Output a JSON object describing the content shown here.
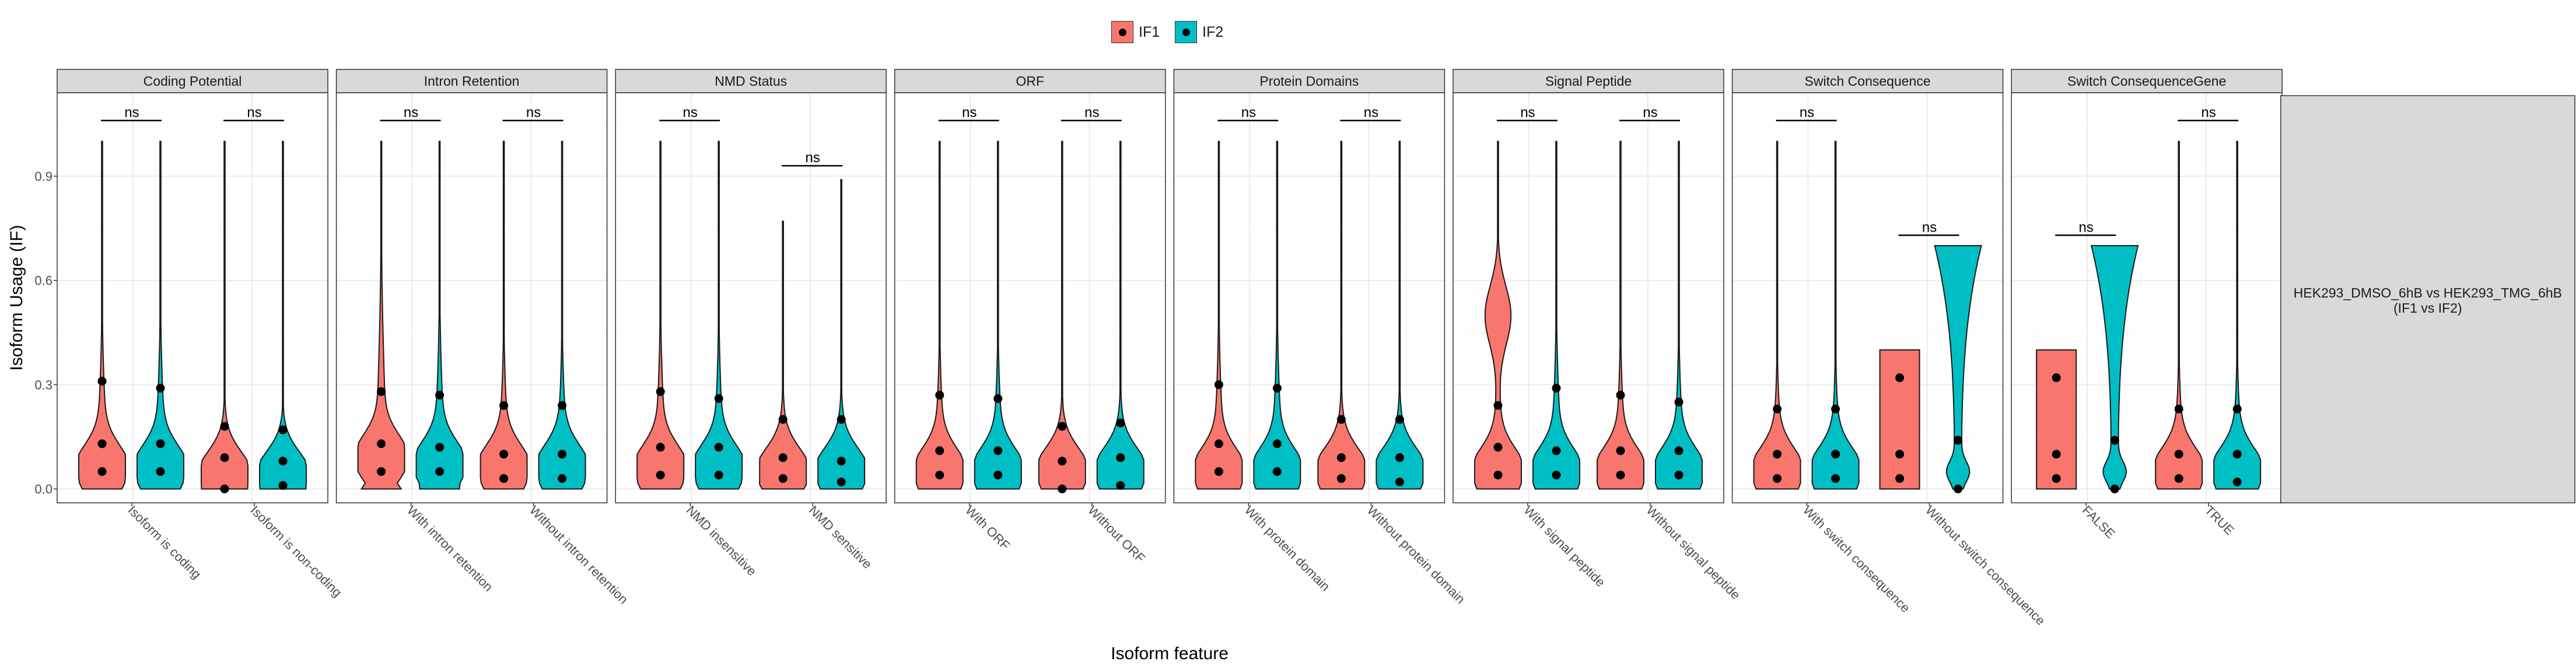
{
  "legend": {
    "items": [
      {
        "label": "IF1",
        "color": "#F8766D"
      },
      {
        "label": "IF2",
        "color": "#00BFC4"
      }
    ]
  },
  "chart_data": {
    "type": "violin",
    "title": "",
    "xlabel": "Isoform feature",
    "ylabel": "Isoform Usage (IF)",
    "ylim": [
      -0.04,
      1.14
    ],
    "yticks": [
      0.0,
      0.3,
      0.6,
      0.9
    ],
    "ytick_labels": [
      "0.0",
      "0.3",
      "0.6",
      "0.9"
    ],
    "grid": true,
    "legend_position": "top",
    "series_names": [
      "IF1",
      "IF2"
    ],
    "series_colors": [
      "#F8766D",
      "#00BFC4"
    ],
    "right_strip_label": "HEK293_DMSO_6hB vs HEK293_TMG_6hB\n(IF1 vs IF2)",
    "panels": [
      {
        "title": "Coding Potential",
        "groups": [
          {
            "label": "Isoform is coding",
            "sig": "ns",
            "sig_y": 1.06,
            "IF1": {
              "max": 1.0,
              "bulge": 0.06,
              "tail": 0.4,
              "q1": 0.05,
              "median": 0.13,
              "q3": 0.31
            },
            "IF2": {
              "max": 1.0,
              "bulge": 0.06,
              "tail": 0.4,
              "q1": 0.05,
              "median": 0.13,
              "q3": 0.29
            }
          },
          {
            "label": "Isoform is non-coding",
            "sig": "ns",
            "sig_y": 1.06,
            "IF1": {
              "max": 1.0,
              "bulge": 0.04,
              "tail": 0.2,
              "q1": 0.0,
              "median": 0.09,
              "q3": 0.18
            },
            "IF2": {
              "max": 1.0,
              "bulge": 0.04,
              "tail": 0.17,
              "q1": 0.01,
              "median": 0.08,
              "q3": 0.17
            }
          }
        ]
      },
      {
        "title": "Intron Retention",
        "groups": [
          {
            "label": "With intron retention",
            "sig": "ns",
            "sig_y": 1.06,
            "IF1": {
              "max": 1.0,
              "bulge": 0.09,
              "tail": 0.55,
              "q1": 0.05,
              "median": 0.13,
              "q3": 0.28
            },
            "IF2": {
              "max": 1.0,
              "bulge": 0.07,
              "tail": 0.42,
              "q1": 0.05,
              "median": 0.12,
              "q3": 0.27
            }
          },
          {
            "label": "Without intron retention",
            "sig": "ns",
            "sig_y": 1.06,
            "IF1": {
              "max": 1.0,
              "bulge": 0.06,
              "tail": 0.35,
              "q1": 0.03,
              "median": 0.1,
              "q3": 0.24
            },
            "IF2": {
              "max": 1.0,
              "bulge": 0.06,
              "tail": 0.35,
              "q1": 0.03,
              "median": 0.1,
              "q3": 0.24
            }
          }
        ]
      },
      {
        "title": "NMD Status",
        "groups": [
          {
            "label": "NMD insensitive",
            "sig": "ns",
            "sig_y": 1.06,
            "IF1": {
              "max": 1.0,
              "bulge": 0.06,
              "tail": 0.4,
              "q1": 0.04,
              "median": 0.12,
              "q3": 0.28
            },
            "IF2": {
              "max": 1.0,
              "bulge": 0.06,
              "tail": 0.38,
              "q1": 0.04,
              "median": 0.12,
              "q3": 0.26
            }
          },
          {
            "label": "NMD sensitive",
            "sig": "ns",
            "sig_y": 0.93,
            "IF1": {
              "max": 0.77,
              "bulge": 0.05,
              "tail": 0.22,
              "q1": 0.03,
              "median": 0.09,
              "q3": 0.2
            },
            "IF2": {
              "max": 0.89,
              "bulge": 0.05,
              "tail": 0.22,
              "q1": 0.02,
              "median": 0.08,
              "q3": 0.2
            }
          }
        ]
      },
      {
        "title": "ORF",
        "groups": [
          {
            "label": "With ORF",
            "sig": "ns",
            "sig_y": 1.06,
            "IF1": {
              "max": 1.0,
              "bulge": 0.05,
              "tail": 0.35,
              "q1": 0.04,
              "median": 0.11,
              "q3": 0.27
            },
            "IF2": {
              "max": 1.0,
              "bulge": 0.05,
              "tail": 0.35,
              "q1": 0.04,
              "median": 0.11,
              "q3": 0.26
            }
          },
          {
            "label": "Without ORF",
            "sig": "ns",
            "sig_y": 1.06,
            "IF1": {
              "max": 1.0,
              "bulge": 0.05,
              "tail": 0.2,
              "q1": 0.0,
              "median": 0.08,
              "q3": 0.18
            },
            "IF2": {
              "max": 1.0,
              "bulge": 0.05,
              "tail": 0.22,
              "q1": 0.01,
              "median": 0.09,
              "q3": 0.19
            }
          }
        ]
      },
      {
        "title": "Protein Domains",
        "groups": [
          {
            "label": "With protein domain",
            "sig": "ns",
            "sig_y": 1.06,
            "IF1": {
              "max": 1.0,
              "bulge": 0.05,
              "tail": 0.4,
              "q1": 0.05,
              "median": 0.13,
              "q3": 0.3
            },
            "IF2": {
              "max": 1.0,
              "bulge": 0.05,
              "tail": 0.4,
              "q1": 0.05,
              "median": 0.13,
              "q3": 0.29
            }
          },
          {
            "label": "Without protein domain",
            "sig": "ns",
            "sig_y": 1.06,
            "IF1": {
              "max": 1.0,
              "bulge": 0.05,
              "tail": 0.22,
              "q1": 0.03,
              "median": 0.09,
              "q3": 0.2
            },
            "IF2": {
              "max": 1.0,
              "bulge": 0.05,
              "tail": 0.22,
              "q1": 0.02,
              "median": 0.09,
              "q3": 0.2
            }
          }
        ]
      },
      {
        "title": "Signal Peptide",
        "groups": [
          {
            "label": "With signal peptide",
            "sig": "ns",
            "sig_y": 1.06,
            "IF1": {
              "max": 1.0,
              "bulge": 0.05,
              "tail": 0.35,
              "q1": 0.04,
              "median": 0.12,
              "q3": 0.24,
              "hump": 0.5
            },
            "IF2": {
              "max": 1.0,
              "bulge": 0.05,
              "tail": 0.4,
              "q1": 0.04,
              "median": 0.11,
              "q3": 0.29
            }
          },
          {
            "label": "Without signal peptide",
            "sig": "ns",
            "sig_y": 1.06,
            "IF1": {
              "max": 1.0,
              "bulge": 0.05,
              "tail": 0.35,
              "q1": 0.04,
              "median": 0.11,
              "q3": 0.27
            },
            "IF2": {
              "max": 1.0,
              "bulge": 0.05,
              "tail": 0.35,
              "q1": 0.04,
              "median": 0.11,
              "q3": 0.25
            }
          }
        ]
      },
      {
        "title": "Switch Consequence",
        "groups": [
          {
            "label": "With switch consequence",
            "sig": "ns",
            "sig_y": 1.06,
            "IF1": {
              "max": 1.0,
              "bulge": 0.05,
              "tail": 0.3,
              "q1": 0.03,
              "median": 0.1,
              "q3": 0.23
            },
            "IF2": {
              "max": 1.0,
              "bulge": 0.05,
              "tail": 0.3,
              "q1": 0.03,
              "median": 0.1,
              "q3": 0.23
            }
          },
          {
            "label": "Without switch consequence",
            "sig": "ns",
            "sig_y": 0.73,
            "IF1": {
              "max": 0.4,
              "min": 0.0,
              "shape": "rect",
              "q1": 0.03,
              "median": 0.1,
              "q3": 0.32
            },
            "IF2": {
              "max": 0.7,
              "min": 0.0,
              "shape": "funnel",
              "q1": 0.0,
              "median": 0.14,
              "q3": 0.14
            }
          }
        ]
      },
      {
        "title": "Switch ConsequenceGene",
        "groups": [
          {
            "label": "FALSE",
            "sig": "ns",
            "sig_y": 0.73,
            "IF1": {
              "max": 0.4,
              "min": 0.0,
              "shape": "rect",
              "q1": 0.03,
              "median": 0.1,
              "q3": 0.32
            },
            "IF2": {
              "max": 0.7,
              "min": 0.0,
              "shape": "funnel",
              "q1": 0.0,
              "median": 0.14,
              "q3": 0.14
            }
          },
          {
            "label": "TRUE",
            "sig": "ns",
            "sig_y": 1.06,
            "IF1": {
              "max": 1.0,
              "bulge": 0.05,
              "tail": 0.3,
              "q1": 0.03,
              "median": 0.1,
              "q3": 0.23
            },
            "IF2": {
              "max": 1.0,
              "bulge": 0.05,
              "tail": 0.3,
              "q1": 0.02,
              "median": 0.1,
              "q3": 0.23
            }
          }
        ]
      }
    ]
  }
}
